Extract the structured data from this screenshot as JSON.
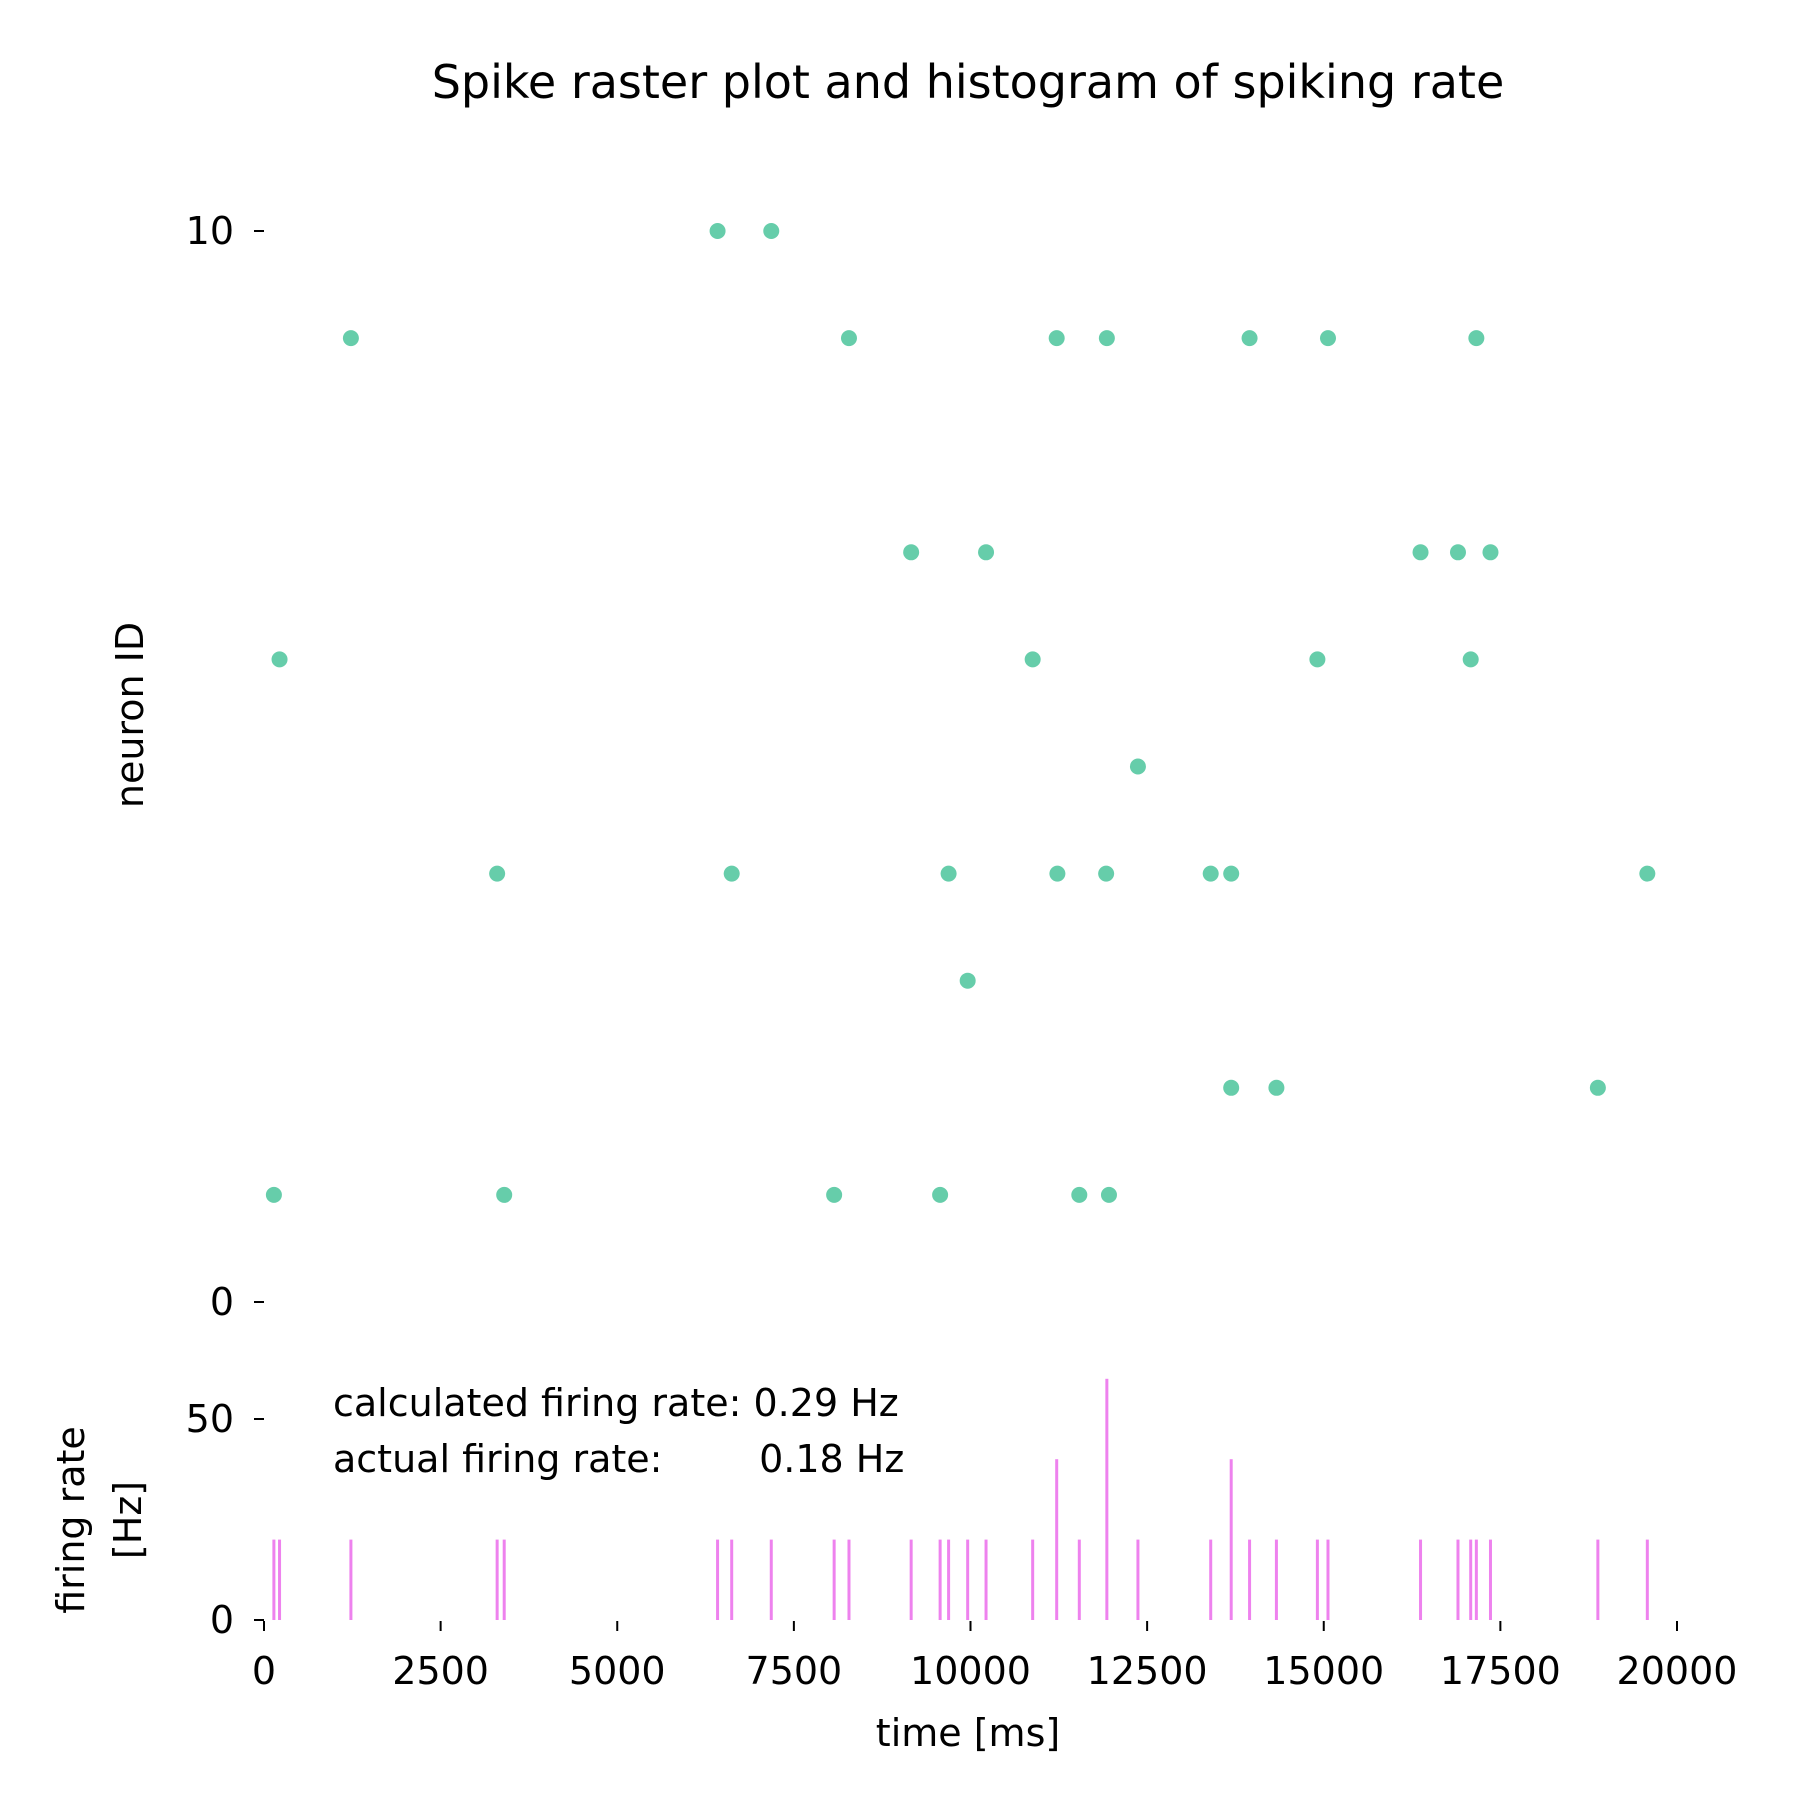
{
  "title": "Spike raster plot and histogram of spiking rate",
  "colors": {
    "spike": "#66cdaa",
    "histogram": "#ee82ee",
    "text": "#000000"
  },
  "chart_data": [
    {
      "type": "scatter",
      "ylabel": "neuron ID",
      "xlim": [
        0,
        20000
      ],
      "ylim": [
        0,
        10
      ],
      "yticks": [
        "0",
        "10"
      ],
      "grid": false,
      "series": [
        {
          "points": [
            [
              6420,
              10
            ],
            [
              7180,
              10
            ],
            [
              1230,
              9
            ],
            [
              8280,
              9
            ],
            [
              11220,
              9
            ],
            [
              11930,
              9
            ],
            [
              13950,
              9
            ],
            [
              15060,
              9
            ],
            [
              17160,
              9
            ],
            [
              9160,
              7
            ],
            [
              10220,
              7
            ],
            [
              16370,
              7
            ],
            [
              16900,
              7
            ],
            [
              17360,
              7
            ],
            [
              220,
              6
            ],
            [
              10880,
              6
            ],
            [
              14910,
              6
            ],
            [
              17080,
              6
            ],
            [
              12370,
              5
            ],
            [
              3300,
              4
            ],
            [
              6620,
              4
            ],
            [
              9690,
              4
            ],
            [
              11230,
              4
            ],
            [
              11920,
              4
            ],
            [
              13400,
              4
            ],
            [
              13690,
              4
            ],
            [
              19580,
              4
            ],
            [
              9960,
              3
            ],
            [
              13690,
              2
            ],
            [
              14330,
              2
            ],
            [
              18880,
              2
            ],
            [
              140,
              1
            ],
            [
              3400,
              1
            ],
            [
              8070,
              1
            ],
            [
              9570,
              1
            ],
            [
              11540,
              1
            ],
            [
              11960,
              1
            ]
          ]
        }
      ]
    },
    {
      "type": "bar",
      "ylabel": "firing rate\n[Hz]",
      "ylabel_lines": [
        "firing rate",
        "[Hz]"
      ],
      "xlabel": "time [ms]",
      "xlim": [
        0,
        20000
      ],
      "ylim": [
        0,
        55
      ],
      "xticks": [
        "0",
        "2500",
        "5000",
        "7500",
        "10000",
        "12500",
        "15000",
        "17500",
        "20000"
      ],
      "yticks": [
        "0",
        "50"
      ],
      "grid": false,
      "bars": [
        [
          140,
          20
        ],
        [
          220,
          20
        ],
        [
          1230,
          20
        ],
        [
          3300,
          20
        ],
        [
          3400,
          20
        ],
        [
          6420,
          20
        ],
        [
          6620,
          20
        ],
        [
          7180,
          20
        ],
        [
          8070,
          20
        ],
        [
          8280,
          20
        ],
        [
          9160,
          20
        ],
        [
          9570,
          20
        ],
        [
          9690,
          20
        ],
        [
          9960,
          20
        ],
        [
          10220,
          20
        ],
        [
          10880,
          20
        ],
        [
          11220,
          40
        ],
        [
          11540,
          20
        ],
        [
          11930,
          60
        ],
        [
          12370,
          20
        ],
        [
          13400,
          20
        ],
        [
          13690,
          40
        ],
        [
          13950,
          20
        ],
        [
          14330,
          20
        ],
        [
          14910,
          20
        ],
        [
          15060,
          20
        ],
        [
          16370,
          20
        ],
        [
          16900,
          20
        ],
        [
          17080,
          20
        ],
        [
          17160,
          20
        ],
        [
          17360,
          20
        ],
        [
          18880,
          20
        ],
        [
          19580,
          20
        ]
      ],
      "annotations": [
        "calculated firing rate: 0.29 Hz",
        "actual firing rate:        0.18 Hz"
      ]
    }
  ]
}
